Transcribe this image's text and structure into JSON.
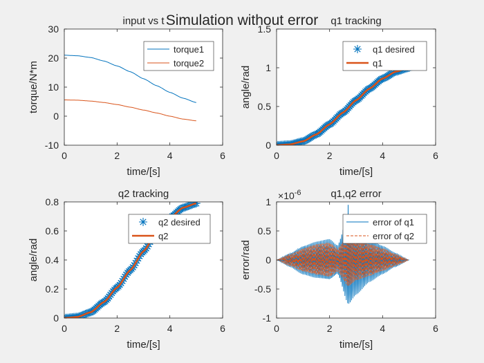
{
  "figure": {
    "suptitle": "Simulation without error"
  },
  "colors": {
    "blue": "#0072bd",
    "orange": "#d95319",
    "axes_bg": "#ffffff",
    "figure_bg": "#f0f0f0",
    "axis": "#262626"
  },
  "chart_data": [
    {
      "type": "line",
      "title": "input vs t",
      "xlabel": "time/[s]",
      "ylabel": "torque/N*m",
      "xlim": [
        0,
        6
      ],
      "ylim": [
        -10,
        30
      ],
      "xticks": [
        "0",
        "2",
        "4",
        "6"
      ],
      "yticks": [
        "-10",
        "0",
        "10",
        "20",
        "30"
      ],
      "legend": "top-right",
      "grid": false,
      "series": [
        {
          "name": "torque1",
          "color": "#0072bd",
          "x": [
            0,
            0.5,
            1,
            1.5,
            2,
            2.5,
            3,
            3.5,
            4,
            4.5,
            5
          ],
          "y": [
            21,
            20.8,
            20.2,
            19,
            17.3,
            15.3,
            12.9,
            10.5,
            8.2,
            6.2,
            4.7
          ]
        },
        {
          "name": "torque2",
          "color": "#d95319",
          "x": [
            0,
            0.5,
            1,
            1.5,
            2,
            2.5,
            3,
            3.5,
            4,
            4.5,
            5
          ],
          "y": [
            5.6,
            5.5,
            5.2,
            4.7,
            4,
            3.1,
            2.1,
            1.1,
            0,
            -1,
            -1.6
          ]
        }
      ]
    },
    {
      "type": "line",
      "title": "q1 tracking",
      "xlabel": "time/[s]",
      "ylabel": "angle/rad",
      "xlim": [
        0,
        6
      ],
      "ylim": [
        0,
        1.5
      ],
      "xticks": [
        "0",
        "2",
        "4",
        "6"
      ],
      "yticks": [
        "0",
        "0.5",
        "1",
        "1.5"
      ],
      "legend": "top-right",
      "grid": false,
      "series": [
        {
          "name": "q1 desired",
          "marker": "*",
          "color": "#0072bd",
          "x": [
            0,
            0.5,
            1,
            1.5,
            2,
            2.5,
            3,
            3.5,
            4,
            4.5,
            5
          ],
          "y": [
            0,
            0.01,
            0.05,
            0.14,
            0.27,
            0.42,
            0.58,
            0.73,
            0.86,
            0.95,
            1
          ]
        },
        {
          "name": "q1",
          "color": "#d95319",
          "x": [
            0,
            0.5,
            1,
            1.5,
            2,
            2.5,
            3,
            3.5,
            4,
            4.5,
            5
          ],
          "y": [
            0,
            0.01,
            0.05,
            0.14,
            0.27,
            0.42,
            0.58,
            0.73,
            0.86,
            0.95,
            1
          ]
        }
      ]
    },
    {
      "type": "line",
      "title": "q2 tracking",
      "xlabel": "time/[s]",
      "ylabel": "angle/rad",
      "xlim": [
        0,
        6
      ],
      "ylim": [
        0,
        0.8
      ],
      "xticks": [
        "0",
        "2",
        "4",
        "6"
      ],
      "yticks": [
        "0",
        "0.2",
        "0.4",
        "0.6",
        "0.8"
      ],
      "legend": "top-right",
      "grid": false,
      "series": [
        {
          "name": "q2 desired",
          "marker": "*",
          "color": "#0072bd",
          "x": [
            0,
            0.5,
            1,
            1.5,
            2,
            2.5,
            3,
            3.5,
            4,
            4.5,
            5
          ],
          "y": [
            0,
            0.008,
            0.04,
            0.11,
            0.21,
            0.33,
            0.46,
            0.59,
            0.69,
            0.76,
            0.79
          ]
        },
        {
          "name": "q2",
          "color": "#d95319",
          "x": [
            0,
            0.5,
            1,
            1.5,
            2,
            2.5,
            3,
            3.5,
            4,
            4.5,
            5
          ],
          "y": [
            0,
            0.008,
            0.04,
            0.11,
            0.21,
            0.33,
            0.46,
            0.59,
            0.69,
            0.76,
            0.79
          ]
        }
      ]
    },
    {
      "type": "line",
      "title": "q1,q2 error",
      "xlabel": "time/[s]",
      "ylabel": "error/rad",
      "exponent_label": "10",
      "exponent_power": "-6",
      "xlim": [
        0,
        6
      ],
      "ylim": [
        -1,
        1
      ],
      "xticks": [
        "0",
        "2",
        "4",
        "6"
      ],
      "yticks": [
        "-1",
        "-0.5",
        "0",
        "0.5",
        "1"
      ],
      "legend": "top-right",
      "grid": false,
      "series": [
        {
          "name": "error of q1",
          "color": "#0072bd",
          "style": "solid",
          "x": [
            0,
            0.5,
            1,
            1.5,
            2,
            2.3,
            2.7,
            3,
            3.5,
            4,
            4.5,
            5
          ],
          "amplitude": [
            0,
            0.12,
            0.25,
            0.32,
            0.36,
            0.25,
            0.78,
            0.6,
            0.38,
            0.25,
            0.12,
            0
          ]
        },
        {
          "name": "error of q2",
          "color": "#d95319",
          "style": "dashed",
          "x": [
            0,
            0.5,
            1,
            1.5,
            2,
            2.3,
            2.7,
            3,
            3.5,
            4,
            4.5,
            5
          ],
          "amplitude": [
            0,
            0.1,
            0.2,
            0.27,
            0.3,
            0.2,
            0.45,
            0.35,
            0.28,
            0.2,
            0.1,
            0
          ]
        }
      ]
    }
  ]
}
